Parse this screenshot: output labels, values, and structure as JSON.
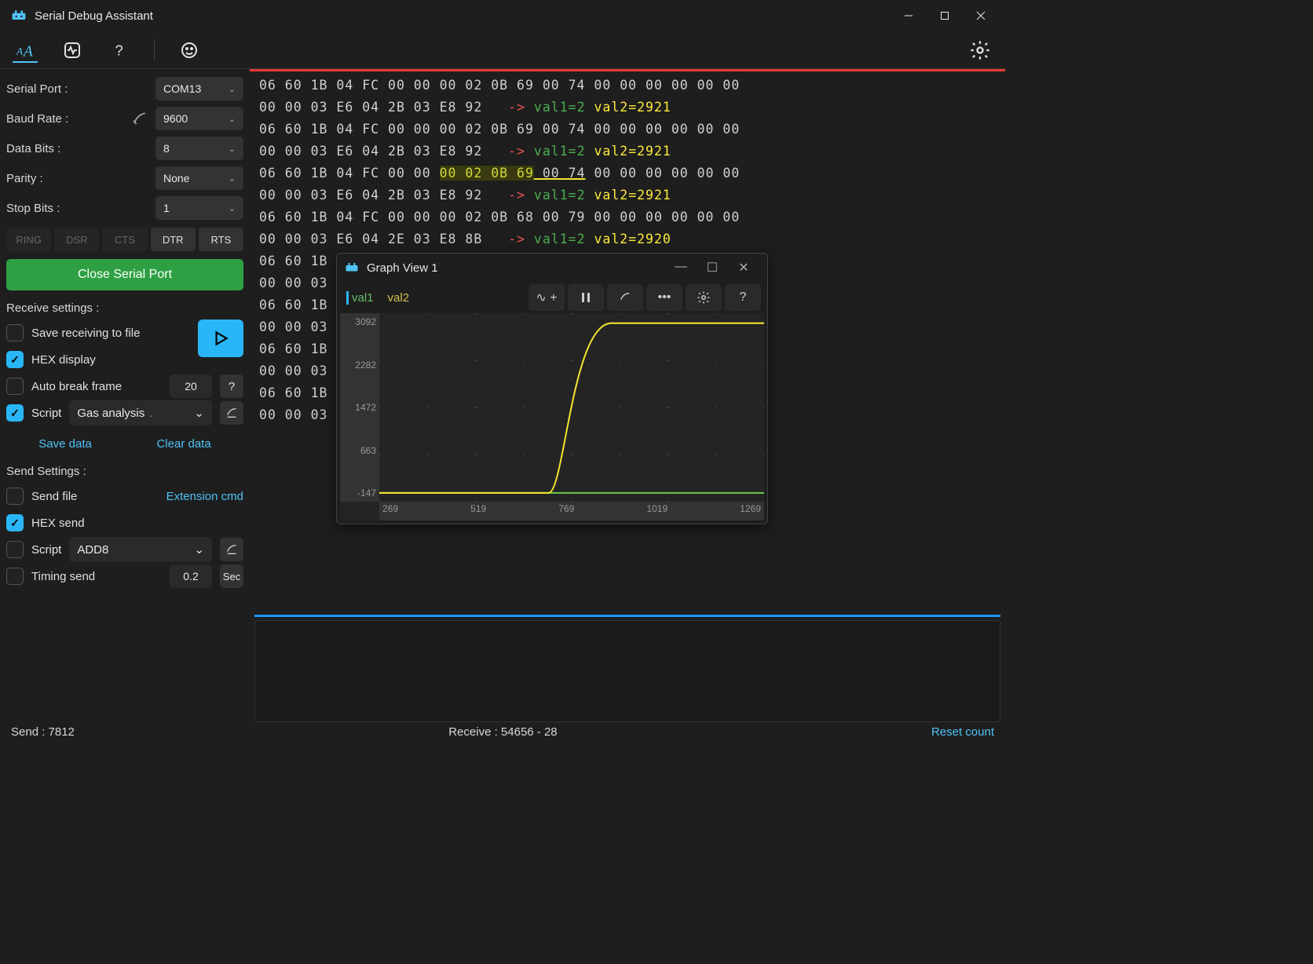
{
  "app": {
    "title": "Serial Debug Assistant"
  },
  "sidebar": {
    "serial_port": {
      "label": "Serial Port :",
      "value": "COM13"
    },
    "baud_rate": {
      "label": "Baud Rate :",
      "value": "9600"
    },
    "data_bits": {
      "label": "Data Bits :",
      "value": "8"
    },
    "parity": {
      "label": "Parity :",
      "value": "None"
    },
    "stop_bits": {
      "label": "Stop Bits :",
      "value": "1"
    },
    "pins": [
      "RING",
      "DSR",
      "CTS",
      "DTR",
      "RTS"
    ],
    "close_btn": "Close Serial Port",
    "receive_label": "Receive settings :",
    "save_to_file": "Save receiving to file",
    "hex_display": "HEX display",
    "auto_break": "Auto break frame",
    "auto_break_val": "20",
    "script_label": "Script",
    "script_value": "Gas analysis",
    "save_data": "Save data",
    "clear_data": "Clear data",
    "send_label": "Send Settings :",
    "send_file": "Send file",
    "ext_cmd": "Extension cmd",
    "hex_send": "HEX send",
    "send_script_label": "Script",
    "send_script_value": "ADD8",
    "timing_send": "Timing send",
    "timing_val": "0.2",
    "timing_unit": "Sec"
  },
  "terminal": {
    "rows": [
      {
        "hex": "06 60 1B 04 FC 00 00 00 02 0B 69 00 74 00 00 00 00 00 00"
      },
      {
        "hex": "00 00 03 E6 04 2B 03 E8 92   ",
        "arrow": "->",
        "val1_label": "val1=",
        "val1": "2",
        "val2_label": "val2=",
        "val2": "2921"
      },
      {
        "hex": "06 60 1B 04 FC 00 00 00 02 0B 69 00 74 00 00 00 00 00 00"
      },
      {
        "hex": "00 00 03 E6 04 2B 03 E8 92   ",
        "arrow": "->",
        "val1_label": "val1=",
        "val1": "2",
        "val2_label": "val2=",
        "val2": "2921"
      },
      {
        "hex_pre": "06 60 1B 04 FC 00 00 ",
        "hex_hl": "00 02 0B 69",
        "hex_ul": " 00 74",
        "hex_post": " 00 00 00 00 00 00",
        "highlight": true
      },
      {
        "hex": "00 00 03 E6 04 2B 03 E8 92   ",
        "arrow": "->",
        "val1_label": "val1=",
        "val1": "2",
        "val2_label": "val2=",
        "val2": "2921",
        "curved": true
      },
      {
        "hex": "06 60 1B 04 FC 00 00 00 02 0B 68 00 79 00 00 00 00 00 00"
      },
      {
        "hex": "00 00 03 E6 04 2E 03 E8 8B   ",
        "arrow": "->",
        "val1_label": "val1=",
        "val1": "2",
        "val2_label": "val2=",
        "val2": "2920"
      },
      {
        "hex": "06 60 1B"
      },
      {
        "hex": "00 00 03"
      },
      {
        "hex": "06 60 1B"
      },
      {
        "hex": "00 00 03"
      },
      {
        "hex": "06 60 1B"
      },
      {
        "hex": "00 00 03"
      },
      {
        "hex": "06 60 1B"
      },
      {
        "hex": "00 00 03"
      }
    ]
  },
  "graph": {
    "title": "Graph View 1",
    "legend": {
      "val1": "val1",
      "val2": "val2"
    },
    "yaxis": [
      "3092",
      "2282",
      "1472",
      "663",
      "-147"
    ],
    "xaxis": [
      "269",
      "519",
      "769",
      "1019",
      "1269"
    ],
    "ylim": [
      -147,
      3092
    ],
    "xlim": [
      269,
      1269
    ],
    "series": {
      "val1": {
        "color": "#6abf4b",
        "flat_y": 2
      },
      "val2": {
        "color": "#f2e52e",
        "start_y": 2,
        "rise_x_frac": 0.44,
        "end_y": 2921
      }
    },
    "background": "#242424",
    "grid_color": "#555555"
  },
  "status": {
    "send": "Send :  7812",
    "receive": "Receive :  54656  -  28",
    "reset": "Reset count"
  }
}
